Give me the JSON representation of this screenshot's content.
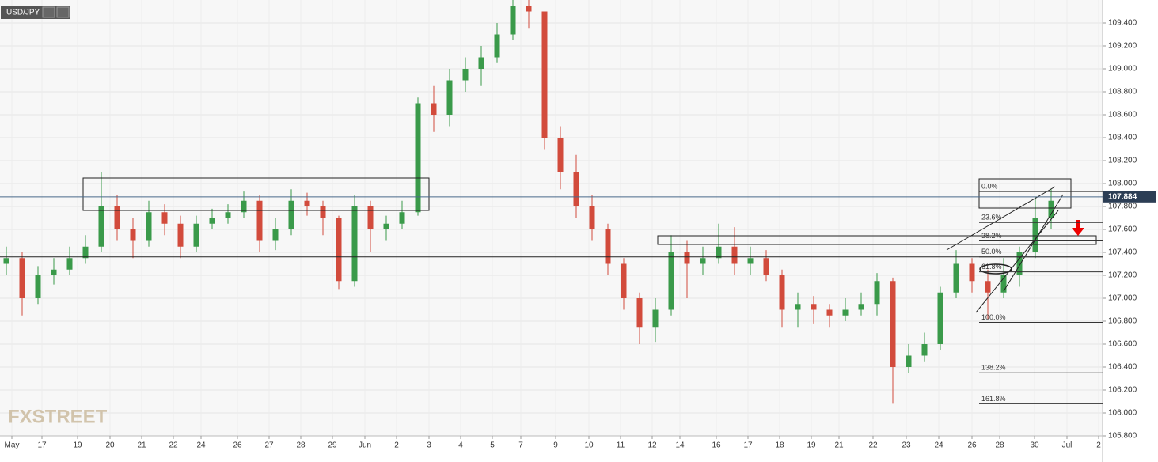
{
  "chart_data": {
    "type": "candlestick",
    "symbol": "USD/JPY",
    "watermark": "FXSTREET",
    "up_color": "#3a9a4a",
    "down_color": "#d24b3c",
    "open": [
      107.3,
      107.35,
      107.0,
      107.2,
      107.25,
      107.35,
      107.45,
      107.8,
      107.6,
      107.5,
      107.75,
      107.65,
      107.45,
      107.65,
      107.7,
      107.75,
      107.85,
      107.5,
      107.6,
      107.85,
      107.8,
      107.7,
      107.15,
      107.8,
      107.6,
      107.65,
      107.75,
      108.7,
      108.6,
      108.9,
      109.0,
      109.1,
      109.3,
      109.55,
      109.5,
      108.4,
      108.1,
      107.8,
      107.6,
      107.3,
      107.0,
      106.75,
      106.9,
      107.4,
      107.3,
      107.35,
      107.45,
      107.3,
      107.35,
      107.2,
      106.9,
      106.95,
      106.9,
      106.85,
      106.9,
      106.95,
      107.15,
      106.4,
      106.5,
      106.6,
      107.05,
      107.3,
      107.15,
      107.05,
      107.2,
      107.4,
      107.7
    ],
    "high": [
      107.45,
      107.4,
      107.28,
      107.35,
      107.45,
      107.55,
      108.1,
      107.9,
      107.7,
      107.85,
      107.82,
      107.72,
      107.72,
      107.78,
      107.82,
      107.93,
      107.9,
      107.7,
      107.95,
      107.92,
      107.85,
      107.72,
      107.9,
      107.85,
      107.72,
      107.85,
      108.75,
      108.85,
      109.0,
      109.1,
      109.2,
      109.4,
      109.62,
      109.6,
      109.5,
      108.5,
      108.25,
      107.9,
      107.65,
      107.35,
      107.05,
      107.0,
      107.55,
      107.5,
      107.45,
      107.65,
      107.62,
      107.45,
      107.42,
      107.25,
      107.05,
      107.02,
      106.95,
      107.0,
      107.05,
      107.22,
      107.18,
      106.6,
      106.7,
      107.1,
      107.42,
      107.35,
      107.25,
      107.35,
      107.45,
      107.88,
      107.95
    ],
    "low": [
      107.2,
      106.85,
      106.95,
      107.12,
      107.2,
      107.3,
      107.4,
      107.5,
      107.35,
      107.45,
      107.55,
      107.35,
      107.4,
      107.6,
      107.65,
      107.7,
      107.4,
      107.42,
      107.55,
      107.72,
      107.55,
      107.08,
      107.1,
      107.4,
      107.5,
      107.6,
      107.72,
      108.45,
      108.5,
      108.8,
      108.85,
      109.05,
      109.25,
      109.35,
      108.3,
      107.95,
      107.7,
      107.5,
      107.2,
      106.9,
      106.6,
      106.62,
      106.85,
      107.0,
      107.2,
      107.3,
      107.2,
      107.2,
      107.15,
      106.75,
      106.75,
      106.78,
      106.75,
      106.8,
      106.85,
      106.85,
      106.08,
      106.35,
      106.45,
      106.55,
      107.0,
      107.05,
      106.82,
      107.0,
      107.1,
      107.35,
      107.6
    ],
    "close": [
      107.35,
      107.0,
      107.2,
      107.25,
      107.35,
      107.45,
      107.8,
      107.6,
      107.5,
      107.75,
      107.65,
      107.45,
      107.65,
      107.7,
      107.75,
      107.85,
      107.5,
      107.6,
      107.85,
      107.8,
      107.7,
      107.15,
      107.8,
      107.6,
      107.65,
      107.75,
      108.7,
      108.6,
      108.9,
      109.0,
      109.1,
      109.3,
      109.55,
      109.5,
      108.4,
      108.1,
      107.8,
      107.6,
      107.3,
      107.0,
      106.75,
      106.9,
      107.4,
      107.3,
      107.35,
      107.45,
      107.3,
      107.35,
      107.2,
      106.9,
      106.95,
      106.9,
      106.85,
      106.9,
      106.95,
      107.15,
      106.4,
      106.5,
      106.6,
      107.05,
      107.3,
      107.15,
      107.05,
      107.2,
      107.4,
      107.7,
      107.85
    ],
    "last_price": 107.884,
    "support_level": 107.36,
    "fib_levels": [
      {
        "label": "0.0%",
        "price": 107.93
      },
      {
        "label": "23.6%",
        "price": 107.66
      },
      {
        "label": "38.2%",
        "price": 107.5
      },
      {
        "label": "50.0%",
        "price": 107.36
      },
      {
        "label": "61.8%",
        "price": 107.23
      },
      {
        "label": "100.0%",
        "price": 106.79
      },
      {
        "label": "138.2%",
        "price": 106.35
      },
      {
        "label": "161.8%",
        "price": 106.08
      }
    ],
    "xlim": [
      -0.4,
      69.25
    ],
    "ylim": [
      105.8,
      109.6
    ],
    "xticks": [
      {
        "value": 0.35,
        "label": "May"
      },
      {
        "value": 2.25,
        "label": "17"
      },
      {
        "value": 4.5,
        "label": "19"
      },
      {
        "value": 6.55,
        "label": "20"
      },
      {
        "value": 8.55,
        "label": "21"
      },
      {
        "value": 10.55,
        "label": "22"
      },
      {
        "value": 12.3,
        "label": "24"
      },
      {
        "value": 14.6,
        "label": "26"
      },
      {
        "value": 16.6,
        "label": "27"
      },
      {
        "value": 18.6,
        "label": "28"
      },
      {
        "value": 20.6,
        "label": "29"
      },
      {
        "value": 22.65,
        "label": "Jun"
      },
      {
        "value": 24.65,
        "label": "2"
      },
      {
        "value": 26.7,
        "label": "3"
      },
      {
        "value": 28.7,
        "label": "4"
      },
      {
        "value": 30.7,
        "label": "5"
      },
      {
        "value": 32.5,
        "label": "7"
      },
      {
        "value": 34.7,
        "label": "9"
      },
      {
        "value": 36.8,
        "label": "10"
      },
      {
        "value": 38.8,
        "label": "11"
      },
      {
        "value": 40.8,
        "label": "12"
      },
      {
        "value": 42.55,
        "label": "14"
      },
      {
        "value": 44.85,
        "label": "16"
      },
      {
        "value": 46.85,
        "label": "17"
      },
      {
        "value": 48.85,
        "label": "18"
      },
      {
        "value": 50.85,
        "label": "19"
      },
      {
        "value": 52.6,
        "label": "21"
      },
      {
        "value": 54.75,
        "label": "22"
      },
      {
        "value": 56.85,
        "label": "23"
      },
      {
        "value": 58.9,
        "label": "24"
      },
      {
        "value": 61.0,
        "label": "26"
      },
      {
        "value": 62.75,
        "label": "28"
      },
      {
        "value": 64.95,
        "label": "30"
      },
      {
        "value": 67.0,
        "label": "Jul"
      },
      {
        "value": 69.0,
        "label": "2"
      }
    ],
    "yticks": [
      {
        "value": 105.8,
        "label": "105.800"
      },
      {
        "value": 106.0,
        "label": "106.000"
      },
      {
        "value": 106.2,
        "label": "106.200"
      },
      {
        "value": 106.4,
        "label": "106.400"
      },
      {
        "value": 106.6,
        "label": "106.600"
      },
      {
        "value": 106.8,
        "label": "106.800"
      },
      {
        "value": 107.0,
        "label": "107.000"
      },
      {
        "value": 107.2,
        "label": "107.200"
      },
      {
        "value": 107.4,
        "label": "107.400"
      },
      {
        "value": 107.6,
        "label": "107.600"
      },
      {
        "value": 107.8,
        "label": "107.800"
      },
      {
        "value": 108.0,
        "label": "108.000"
      },
      {
        "value": 108.2,
        "label": "108.200"
      },
      {
        "value": 108.4,
        "label": "108.400"
      },
      {
        "value": 108.6,
        "label": "108.600"
      },
      {
        "value": 108.8,
        "label": "108.800"
      },
      {
        "value": 109.0,
        "label": "109.000"
      },
      {
        "value": 109.2,
        "label": "109.200"
      },
      {
        "value": 109.4,
        "label": "109.400"
      }
    ],
    "grid": true
  }
}
